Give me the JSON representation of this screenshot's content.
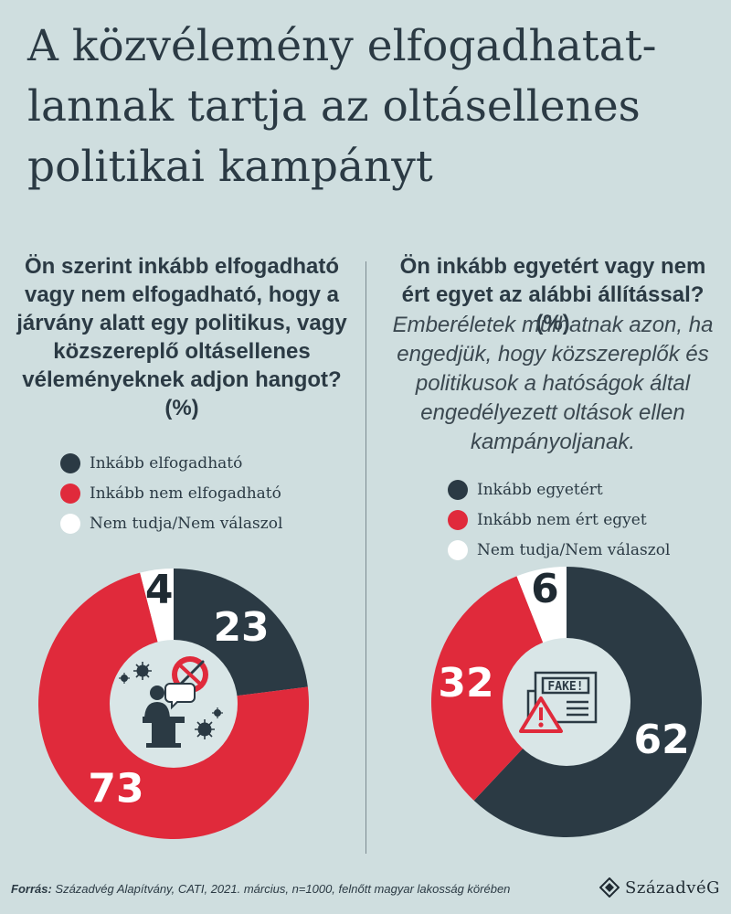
{
  "title": {
    "line1": "A közvélemény elfogadhatat-",
    "line2": "lannak tartja az oltásellenes",
    "line3": "politikai kampányt"
  },
  "colors": {
    "background": "#cfdedf",
    "dark": "#2b3a44",
    "red": "#e02a3b",
    "white": "#ffffff",
    "center": "#d9e6e7"
  },
  "chart_data": [
    {
      "type": "pie",
      "title": "Ön szerint inkább elfogadható vagy nem elfogadható, hogy a járvány alatt egy politikus, vagy közszereplő oltásellenes véleményeknek adjon hangot? (%)",
      "categories": [
        "Inkább elfogadható",
        "Inkább nem elfogadható",
        "Nem tudja/Nem válaszol"
      ],
      "values": [
        23,
        73,
        4
      ],
      "colors": [
        "#2b3a44",
        "#e02a3b",
        "#ffffff"
      ],
      "legend": "top"
    },
    {
      "type": "pie",
      "title": "Ön inkább egyetért vagy nem ért egyet az alábbi állítással? (%)",
      "subtitle": "Emberéletek múlhatnak azon, ha engedjük, hogy közszereplők és politikusok a hatóságok által engedélyezett oltások ellen kampányoljanak.",
      "categories": [
        "Inkább egyetért",
        "Inkább nem ért egyet",
        "Nem tudja/Nem válaszol"
      ],
      "values": [
        62,
        32,
        6
      ],
      "colors": [
        "#2b3a44",
        "#e02a3b",
        "#ffffff"
      ],
      "legend": "top"
    }
  ],
  "center_icons": {
    "left": [
      "virus-icon",
      "no-vaccine-icon",
      "speaker-podium-icon"
    ],
    "right": [
      "fake-news-newspaper-icon",
      "warning-icon"
    ]
  },
  "footer": {
    "source_label": "Forrás:",
    "source_text": " Századvég Alapítvány, CATI, 2021. március, n=1000, felnőtt magyar lakosság körében",
    "logo_text": "SzázadvéG"
  }
}
